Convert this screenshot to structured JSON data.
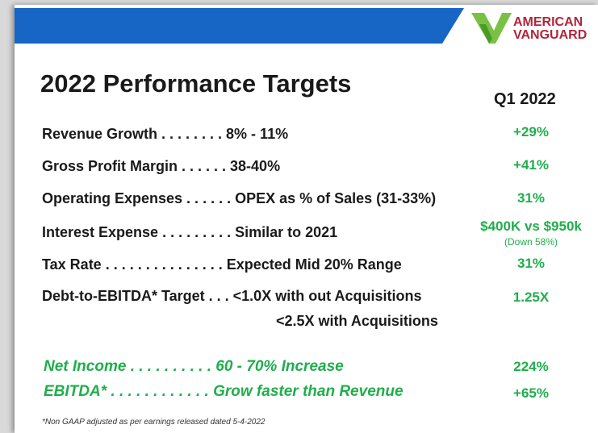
{
  "header": {
    "logo_line1": "AMERICAN",
    "logo_line2": "VANGUARD"
  },
  "title": "2022 Performance Targets",
  "column_header": "Q1 2022",
  "rows": [
    {
      "label": "Revenue Growth . . . . . . . . 8% - 11%",
      "value": "+29%"
    },
    {
      "label": "Gross Profit Margin . . . . . . 38-40%",
      "value": "+41%"
    },
    {
      "label": "Operating Expenses . . . . . . OPEX as % of Sales (31-33%)",
      "value": "31%"
    },
    {
      "label": "Interest Expense . . . . . . . . . Similar to 2021",
      "value": "$400K vs $950k",
      "note": "(Down 58%)"
    },
    {
      "label": "Tax Rate . . . . . . . . . . . . . . . Expected Mid 20% Range",
      "value": "31%"
    },
    {
      "label": "Debt-to-EBITDA* Target . . . <1.0X with out Acquisitions",
      "line2": "<2.5X with Acquisitions",
      "value": "1.25X"
    }
  ],
  "highlights": [
    {
      "label": "Net Income . . . . . . . . . . 60 - 70% Increase",
      "value": "224%"
    },
    {
      "label": "EBITDA* . . . . . . . . . . . . Grow faster than Revenue",
      "value": "+65%"
    }
  ],
  "footnote": "*Non GAAP adjusted as per earnings released dated 5-4-2022"
}
